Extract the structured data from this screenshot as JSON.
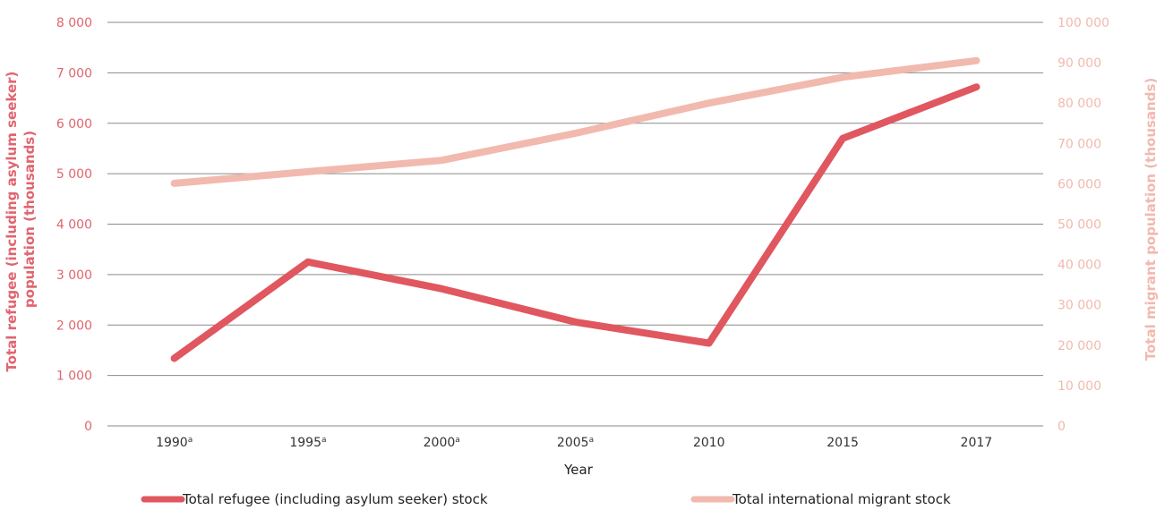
{
  "chart_data": {
    "type": "line",
    "categories": [
      "1990",
      "1995",
      "2000",
      "2005",
      "2010",
      "2015",
      "2017"
    ],
    "category_superscripts": [
      "a",
      "a",
      "a",
      "a",
      "",
      "",
      ""
    ],
    "series": [
      {
        "name": "Total refugee (including asylum seeker) stock",
        "axis": "left",
        "color": "#e0575f",
        "values": [
          1340,
          3250,
          2720,
          2060,
          1640,
          5700,
          6720
        ]
      },
      {
        "name": "Total international migrant stock",
        "axis": "right",
        "color": "#f2b9ae",
        "values": [
          60100,
          63000,
          65800,
          72500,
          80000,
          86400,
          90500
        ]
      }
    ],
    "xlabel": "Year",
    "ylabel_left_lines": [
      "Total refugee (including asylum seeker)",
      "population (thousands)"
    ],
    "ylabel_right": "Total migrant population (thousands)",
    "ylim_left": [
      0,
      8000
    ],
    "ylim_right": [
      0,
      100000
    ],
    "yticks_left": [
      "0",
      "1 000",
      "2 000",
      "3 000",
      "4 000",
      "5 000",
      "6 000",
      "7 000",
      "8 000"
    ],
    "yticks_right": [
      "0",
      "10 000",
      "20 000",
      "30 000",
      "40 000",
      "50 000",
      "60 000",
      "70 000",
      "80 000",
      "90 000",
      "100 000"
    ],
    "grid": true,
    "legend_position": "bottom"
  }
}
